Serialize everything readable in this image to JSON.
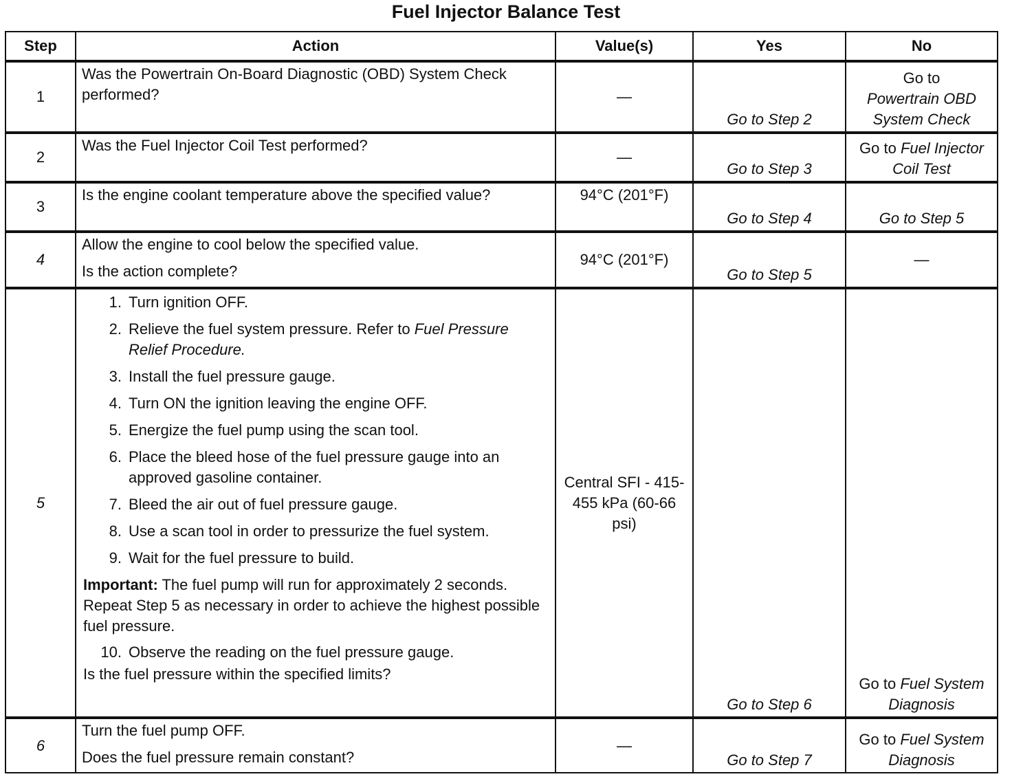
{
  "title": "Fuel Injector Balance Test",
  "headers": [
    "Step",
    "Action",
    "Value(s)",
    "Yes",
    "No"
  ],
  "rows": [
    {
      "step": "1",
      "action": [
        "Was the Powertrain On-Board Diagnostic (OBD) System Check performed?"
      ],
      "value": "—",
      "yes": "Go to Step 2",
      "no_plain": "Go to",
      "no_italic": "Powertrain OBD System Check"
    },
    {
      "step": "2",
      "action": [
        "Was the Fuel Injector Coil Test performed?"
      ],
      "value": "—",
      "yes": "Go to Step 3",
      "no_plain": "Go to",
      "no_italic": "Fuel Injector Coil Test"
    },
    {
      "step": "3",
      "action": [
        "Is the engine coolant temperature above the specified value?"
      ],
      "value": "94°C (201°F)",
      "yes": "Go to Step 4",
      "no_plain": "",
      "no_italic": "Go to Step 5"
    },
    {
      "step": "4",
      "action": [
        "Allow the engine to cool below the specified value.",
        "Is the action complete?"
      ],
      "value": "94°C (201°F)",
      "yes": "Go to Step 5",
      "no_plain": "—",
      "no_italic": ""
    },
    {
      "step": "5",
      "list": [
        {
          "n": "1.",
          "text": "Turn ignition OFF."
        },
        {
          "n": "2.",
          "text": "Relieve the fuel system pressure. Refer to ",
          "italic": "Fuel Pressure Relief Procedure."
        },
        {
          "n": "3.",
          "text": "Install the fuel pressure gauge."
        },
        {
          "n": "4.",
          "text": "Turn ON the ignition leaving the engine OFF."
        },
        {
          "n": "5.",
          "text": "Energize the fuel pump using the scan tool."
        },
        {
          "n": "6.",
          "text": "Place the bleed hose of the fuel pressure gauge into an approved gasoline container."
        },
        {
          "n": "7.",
          "text": "Bleed the air out of fuel pressure gauge."
        },
        {
          "n": "8.",
          "text": "Use a scan tool in order to pressurize the fuel system."
        },
        {
          "n": "9.",
          "text": "Wait for the fuel pressure to build."
        }
      ],
      "important_label": "Important:",
      "important_text": " The fuel pump will run for approximately 2 seconds. Repeat Step 5 as necessary in order to achieve the highest possible fuel pressure.",
      "item10": {
        "n": "10.",
        "text": "Observe the reading on the fuel pressure gauge."
      },
      "question": "Is the fuel pressure within the specified limits?",
      "value": "Central SFI - 415-455 kPa (60-66 psi)",
      "yes": "Go to Step 6",
      "no_plain": "Go to",
      "no_italic": "Fuel System Diagnosis"
    },
    {
      "step": "6",
      "action": [
        "Turn the fuel pump OFF.",
        "Does the fuel pressure remain constant?"
      ],
      "value": "—",
      "yes": "Go to Step 7",
      "no_plain": "Go to",
      "no_italic": "Fuel System Diagnosis"
    }
  ]
}
